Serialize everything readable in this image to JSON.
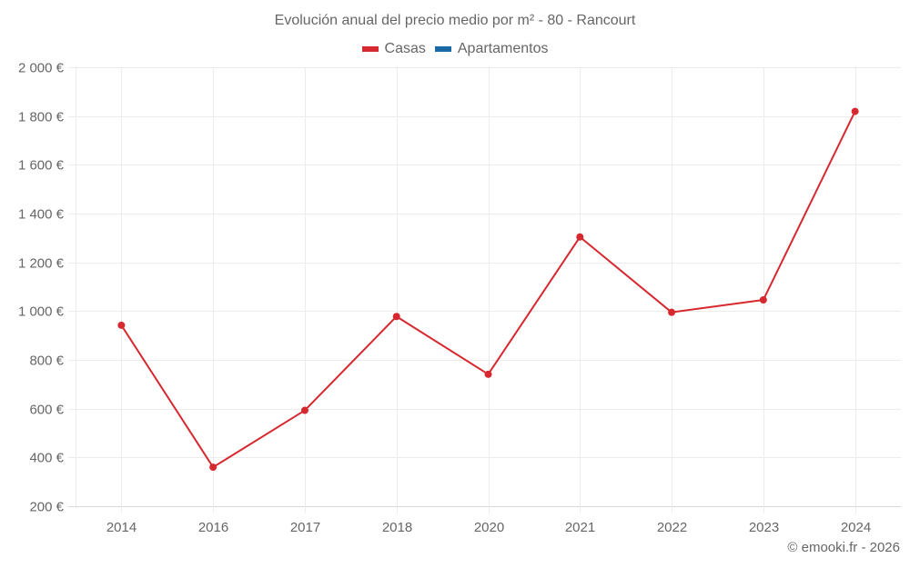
{
  "title": "Evolución anual del precio medio por m² - 80 - Rancourt",
  "legend": [
    {
      "label": "Casas",
      "color": "#d7282f"
    },
    {
      "label": "Apartamentos",
      "color": "#1b6aa5"
    }
  ],
  "credit": "© emooki.fr - 2026",
  "chart_data": {
    "type": "line",
    "title": "Evolución anual del precio medio por m² - 80 - Rancourt",
    "xlabel": "",
    "ylabel": "",
    "categories": [
      "2014",
      "2016",
      "2017",
      "2018",
      "2020",
      "2021",
      "2022",
      "2023",
      "2024"
    ],
    "series": [
      {
        "name": "Casas",
        "color": "#d7282f",
        "values": [
          942,
          360,
          593,
          978,
          741,
          1304,
          995,
          1046,
          1819
        ]
      },
      {
        "name": "Apartamentos",
        "color": "#1b6aa5",
        "values": []
      }
    ],
    "ylim": [
      200,
      2000
    ],
    "yticks": [
      200,
      400,
      600,
      800,
      1000,
      1200,
      1400,
      1600,
      1800,
      2000
    ],
    "ytick_labels": [
      "200 €",
      "400 €",
      "600 €",
      "800 €",
      "1 000 €",
      "1 200 €",
      "1 400 €",
      "1 600 €",
      "1 800 €",
      "2 000 €"
    ],
    "grid": true,
    "legend_position": "top"
  }
}
